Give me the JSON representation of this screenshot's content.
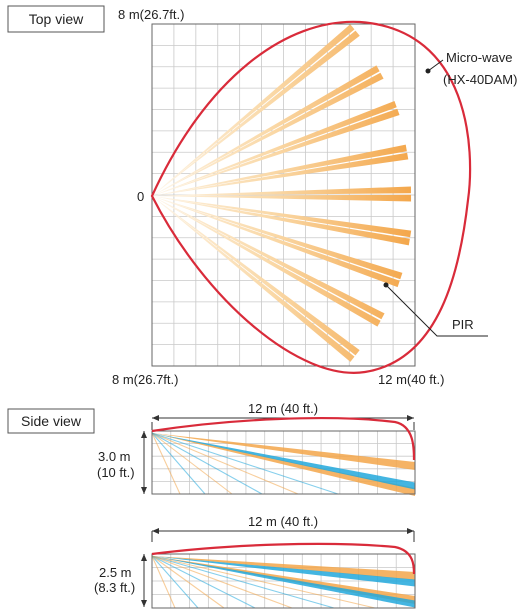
{
  "top_view": {
    "title": "Top view",
    "label_top": "8 m(26.7ft.)",
    "label_origin": "0",
    "label_bottom_left": "8 m(26.7ft.)",
    "label_bottom_right": "12 m(40 ft.)",
    "microwave_label_line1": "Micro-wave",
    "microwave_label_line2": "(HX-40DAM)",
    "pir_label": "PIR"
  },
  "side_view": {
    "title": "Side view",
    "panel1": {
      "width_label": "12 m (40 ft.)",
      "height_line1": "3.0 m",
      "height_line2": "(10 ft.)"
    },
    "panel2": {
      "width_label": "12 m (40 ft.)",
      "height_line1": "2.5 m",
      "height_line2": "(8.3 ft.)"
    }
  },
  "colors": {
    "microwave": "#d92b3a",
    "pir_orange": "#f3a64a",
    "pir_blue": "#22a8dc",
    "grid": "#c9c9c9"
  }
}
